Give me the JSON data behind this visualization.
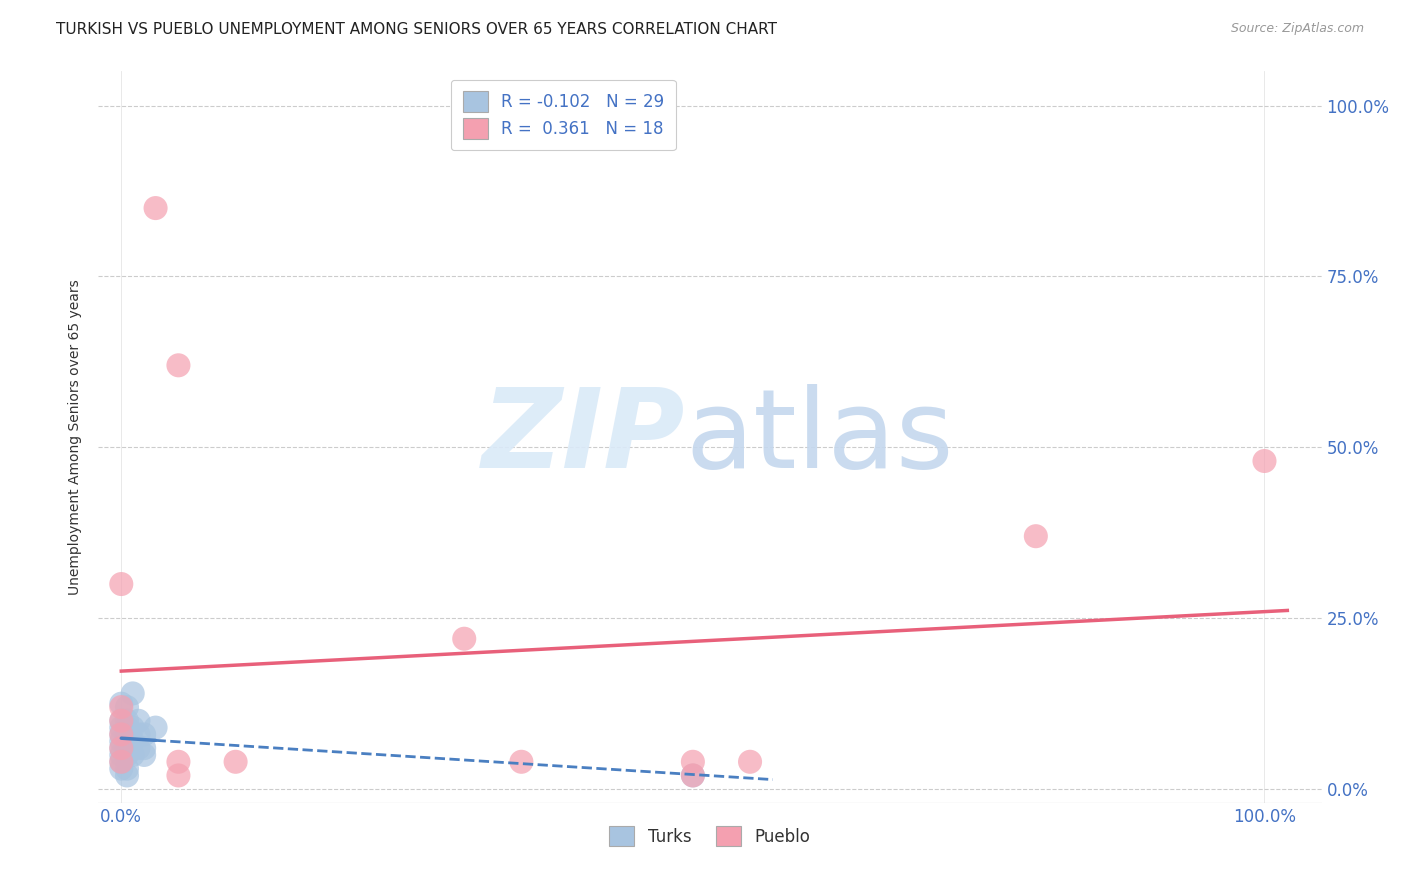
{
  "title": "TURKISH VS PUEBLO UNEMPLOYMENT AMONG SENIORS OVER 65 YEARS CORRELATION CHART",
  "source": "Source: ZipAtlas.com",
  "ylabel": "Unemployment Among Seniors over 65 years",
  "legend_turks_R": "-0.102",
  "legend_turks_N": "29",
  "legend_pueblo_R": "0.361",
  "legend_pueblo_N": "18",
  "turks_color": "#a8c4e0",
  "pueblo_color": "#f4a0b0",
  "turks_line_color": "#4a7fc1",
  "pueblo_line_color": "#e8607a",
  "label_color": "#4472c4",
  "grid_color": "#cccccc",
  "background_color": "#ffffff",
  "turks_points": [
    [
      0.0,
      12.5
    ],
    [
      0.0,
      10.0
    ],
    [
      0.0,
      9.0
    ],
    [
      0.0,
      8.0
    ],
    [
      0.0,
      7.0
    ],
    [
      0.0,
      6.0
    ],
    [
      0.0,
      5.0
    ],
    [
      0.0,
      4.0
    ],
    [
      0.0,
      3.0
    ],
    [
      0.5,
      12.0
    ],
    [
      0.5,
      10.0
    ],
    [
      0.5,
      9.0
    ],
    [
      0.5,
      8.0
    ],
    [
      0.5,
      6.0
    ],
    [
      0.5,
      5.0
    ],
    [
      0.5,
      3.0
    ],
    [
      0.5,
      2.0
    ],
    [
      1.0,
      14.0
    ],
    [
      1.0,
      9.0
    ],
    [
      1.0,
      7.0
    ],
    [
      1.0,
      5.0
    ],
    [
      1.5,
      10.0
    ],
    [
      1.5,
      8.0
    ],
    [
      1.5,
      6.0
    ],
    [
      2.0,
      8.0
    ],
    [
      2.0,
      6.0
    ],
    [
      2.0,
      5.0
    ],
    [
      3.0,
      9.0
    ],
    [
      50.0,
      2.0
    ]
  ],
  "pueblo_points": [
    [
      0.0,
      30.0
    ],
    [
      0.0,
      12.0
    ],
    [
      0.0,
      10.0
    ],
    [
      0.0,
      8.0
    ],
    [
      0.0,
      6.0
    ],
    [
      0.0,
      4.0
    ],
    [
      3.0,
      85.0
    ],
    [
      5.0,
      62.0
    ],
    [
      5.0,
      4.0
    ],
    [
      5.0,
      2.0
    ],
    [
      10.0,
      4.0
    ],
    [
      30.0,
      22.0
    ],
    [
      35.0,
      4.0
    ],
    [
      50.0,
      4.0
    ],
    [
      50.0,
      2.0
    ],
    [
      55.0,
      4.0
    ],
    [
      80.0,
      37.0
    ],
    [
      100.0,
      48.0
    ]
  ],
  "xlim": [
    -2.0,
    105.0
  ],
  "ylim": [
    -2.0,
    105.0
  ],
  "x_ticks": [
    0.0,
    100.0
  ],
  "x_tick_labels": [
    "0.0%",
    "100.0%"
  ],
  "y_ticks": [
    0.0,
    25.0,
    50.0,
    75.0,
    100.0
  ],
  "y_tick_labels_right": [
    "0.0%",
    "25.0%",
    "50.0%",
    "75.0%",
    "100.0%"
  ],
  "title_fontsize": 11,
  "tick_fontsize": 12,
  "ylabel_fontsize": 10
}
